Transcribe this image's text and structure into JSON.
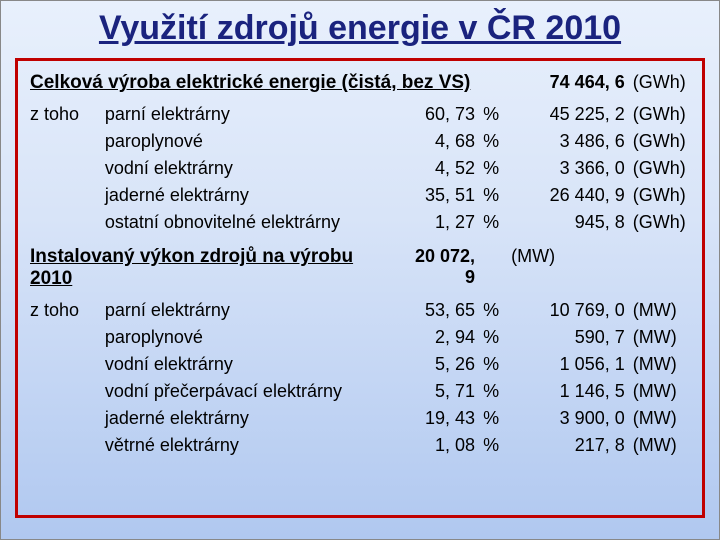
{
  "title": "Využití zdrojů energie v ČR 2010",
  "colors": {
    "title_color": "#1a237e",
    "box_border": "#c00000",
    "bg_top": "#e8f0fc",
    "bg_bottom": "#b0c8f0"
  },
  "section1": {
    "header": "Celková výroba elektrické energie (čistá, bez VS)",
    "total_value": "74 464, 6",
    "total_unit": "(GWh)",
    "lead": "z toho",
    "rows": [
      {
        "name": "parní elektrárny",
        "pct": "60, 73",
        "pct_unit": "%",
        "value": "45 225, 2",
        "unit": "(GWh)"
      },
      {
        "name": "paroplynové",
        "pct": "4, 68",
        "pct_unit": "%",
        "value": "3 486, 6",
        "unit": "(GWh)"
      },
      {
        "name": "vodní elektrárny",
        "pct": "4, 52",
        "pct_unit": "%",
        "value": "3 366, 0",
        "unit": "(GWh)"
      },
      {
        "name": "jaderné elektrárny",
        "pct": "35, 51",
        "pct_unit": "%",
        "value": "26 440, 9",
        "unit": "(GWh)"
      },
      {
        "name": "ostatní obnovitelné elektrárny",
        "pct": "1, 27",
        "pct_unit": "%",
        "value": "945, 8",
        "unit": "(GWh)"
      }
    ]
  },
  "section2": {
    "header": "Instalovaný výkon zdrojů na výrobu 2010",
    "total_value": "20 072, 9",
    "total_unit": "(MW)",
    "lead": "z toho",
    "rows": [
      {
        "name": "parní elektrárny",
        "pct": "53, 65",
        "pct_unit": "%",
        "value": "10 769, 0",
        "unit": "(MW)"
      },
      {
        "name": "paroplynové",
        "pct": "2, 94",
        "pct_unit": "%",
        "value": "590, 7",
        "unit": "(MW)"
      },
      {
        "name": "vodní elektrárny",
        "pct": "5, 26",
        "pct_unit": "%",
        "value": "1 056, 1",
        "unit": "(MW)"
      },
      {
        "name": "vodní přečerpávací elektrárny",
        "pct": "5, 71",
        "pct_unit": "%",
        "value": "1 146, 5",
        "unit": "(MW)"
      },
      {
        "name": "jaderné elektrárny",
        "pct": "19, 43",
        "pct_unit": "%",
        "value": "3 900, 0",
        "unit": "(MW)"
      },
      {
        "name": "větrné elektrárny",
        "pct": "1, 08",
        "pct_unit": "%",
        "value": "217, 8",
        "unit": "(MW)"
      }
    ]
  }
}
